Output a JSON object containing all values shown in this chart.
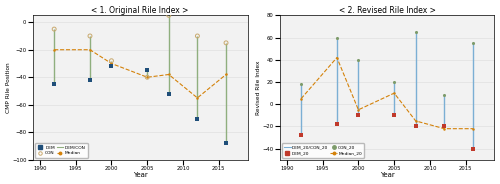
{
  "left": {
    "title": "< 1. Original Rile Index >",
    "ylabel": "CMP Rile Position",
    "xlabel": "Year",
    "years": [
      1992,
      1997,
      2000,
      2005,
      2008,
      2012,
      2016
    ],
    "dem": [
      -45,
      -42,
      -32,
      -35,
      -52,
      -70,
      -88
    ],
    "con": [
      -5,
      -10,
      -28,
      -40,
      5,
      -10,
      -15
    ],
    "median": [
      -20,
      -20,
      -30,
      -40,
      -38,
      -55,
      -38
    ],
    "ylim": [
      -100,
      5
    ],
    "yticks": [
      0,
      -20,
      -40,
      -60,
      -80,
      -100
    ],
    "xlim": [
      1989,
      2019
    ],
    "xticks": [
      1990,
      1995,
      2000,
      2005,
      2010,
      2015
    ]
  },
  "right": {
    "title": "< 2. Revised Rile Index >",
    "ylabel": "Revised Rile Index",
    "xlabel": "Year",
    "years": [
      1992,
      1997,
      2000,
      2005,
      2008,
      2012,
      2016
    ],
    "dem_20": [
      -28,
      -18,
      -10,
      -10,
      -20,
      -20,
      -40
    ],
    "con_20": [
      18,
      60,
      40,
      20,
      65,
      8,
      55
    ],
    "median_20": [
      5,
      42,
      -5,
      10,
      -15,
      -22,
      -22
    ],
    "ylim": [
      -50,
      80
    ],
    "yticks": [
      80,
      60,
      40,
      20,
      0,
      -20,
      -40
    ],
    "xlim": [
      1989,
      2019
    ],
    "xticks": [
      1990,
      1995,
      2000,
      2005,
      2010,
      2015
    ]
  },
  "colors": {
    "dem": "#1F4E79",
    "con": "#C9A96E",
    "dem_con_line": "#8FAF7E",
    "median_line": "#D4820A",
    "dem_con_line_right": "#7BAFD4",
    "dem_20": "#C0392B",
    "con_20": "#7D9B6A",
    "background": "#F2F2F2",
    "grid": "#DCDCDC"
  }
}
